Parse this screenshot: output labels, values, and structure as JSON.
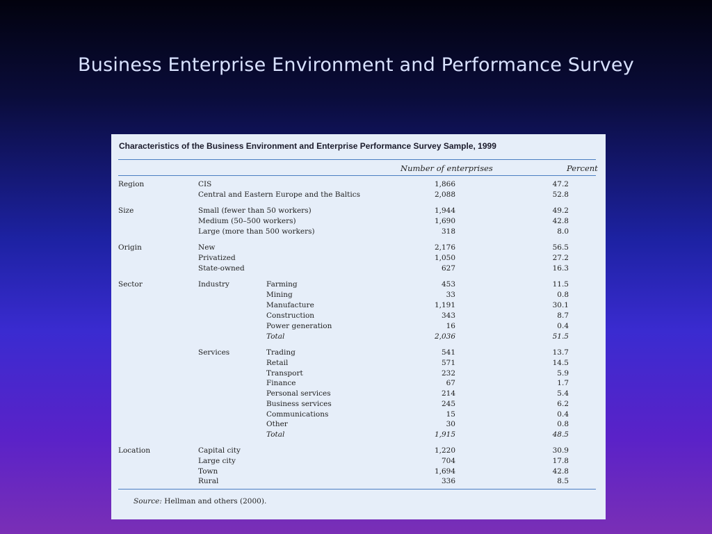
{
  "slide": {
    "title": "Business Enterprise Environment and Performance Survey"
  },
  "table": {
    "title": "Characteristics of the Business Environment and Enterprise Performance Survey Sample, 1999",
    "col_number": "Number of enterprises",
    "col_percent": "Percent",
    "source_label": "Source:",
    "source_text": " Hellman and others (2000).",
    "rows": [
      {
        "group": "Region",
        "sub": "",
        "item": "CIS",
        "number": "1,866",
        "percent": "47.2"
      },
      {
        "group": "",
        "sub": "",
        "item": "Central and Eastern Europe and the Baltics",
        "number": "2,088",
        "percent": "52.8"
      },
      {
        "group": "Size",
        "sub": "",
        "item": "Small (fewer than 50 workers)",
        "number": "1,944",
        "percent": "49.2"
      },
      {
        "group": "",
        "sub": "",
        "item": "Medium (50–500 workers)",
        "number": "1,690",
        "percent": "42.8"
      },
      {
        "group": "",
        "sub": "",
        "item": "Large (more than 500 workers)",
        "number": "318",
        "percent": "8.0"
      },
      {
        "group": "Origin",
        "sub": "",
        "item": "New",
        "number": "2,176",
        "percent": "56.5"
      },
      {
        "group": "",
        "sub": "",
        "item": "Privatized",
        "number": "1,050",
        "percent": "27.2"
      },
      {
        "group": "",
        "sub": "",
        "item": "State-owned",
        "number": "627",
        "percent": "16.3"
      },
      {
        "group": "Sector",
        "sub": "Industry",
        "item": "Farming",
        "number": "453",
        "percent": "11.5"
      },
      {
        "group": "",
        "sub": "",
        "item": "Mining",
        "number": "33",
        "percent": "0.8"
      },
      {
        "group": "",
        "sub": "",
        "item": "Manufacture",
        "number": "1,191",
        "percent": "30.1"
      },
      {
        "group": "",
        "sub": "",
        "item": "Construction",
        "number": "343",
        "percent": "8.7"
      },
      {
        "group": "",
        "sub": "",
        "item": "Power generation",
        "number": "16",
        "percent": "0.4"
      },
      {
        "group": "",
        "sub": "",
        "item": "Total",
        "number": "2,036",
        "percent": "51.5",
        "total": true
      },
      {
        "group": "",
        "sub": "Services",
        "item": "Trading",
        "number": "541",
        "percent": "13.7"
      },
      {
        "group": "",
        "sub": "",
        "item": "Retail",
        "number": "571",
        "percent": "14.5"
      },
      {
        "group": "",
        "sub": "",
        "item": "Transport",
        "number": "232",
        "percent": "5.9"
      },
      {
        "group": "",
        "sub": "",
        "item": "Finance",
        "number": "67",
        "percent": "1.7"
      },
      {
        "group": "",
        "sub": "",
        "item": "Personal services",
        "number": "214",
        "percent": "5.4"
      },
      {
        "group": "",
        "sub": "",
        "item": "Business services",
        "number": "245",
        "percent": "6.2"
      },
      {
        "group": "",
        "sub": "",
        "item": "Communications",
        "number": "15",
        "percent": "0.4"
      },
      {
        "group": "",
        "sub": "",
        "item": "Other",
        "number": "30",
        "percent": "0.8"
      },
      {
        "group": "",
        "sub": "",
        "item": "Total",
        "number": "1,915",
        "percent": "48.5",
        "total": true
      },
      {
        "group": "Location",
        "sub": "",
        "item": "Capital city",
        "number": "1,220",
        "percent": "30.9"
      },
      {
        "group": "",
        "sub": "",
        "item": "Large city",
        "number": "704",
        "percent": "17.8"
      },
      {
        "group": "",
        "sub": "",
        "item": "Town",
        "number": "1,694",
        "percent": "42.8"
      },
      {
        "group": "",
        "sub": "",
        "item": "Rural",
        "number": "336",
        "percent": "8.5"
      }
    ]
  }
}
